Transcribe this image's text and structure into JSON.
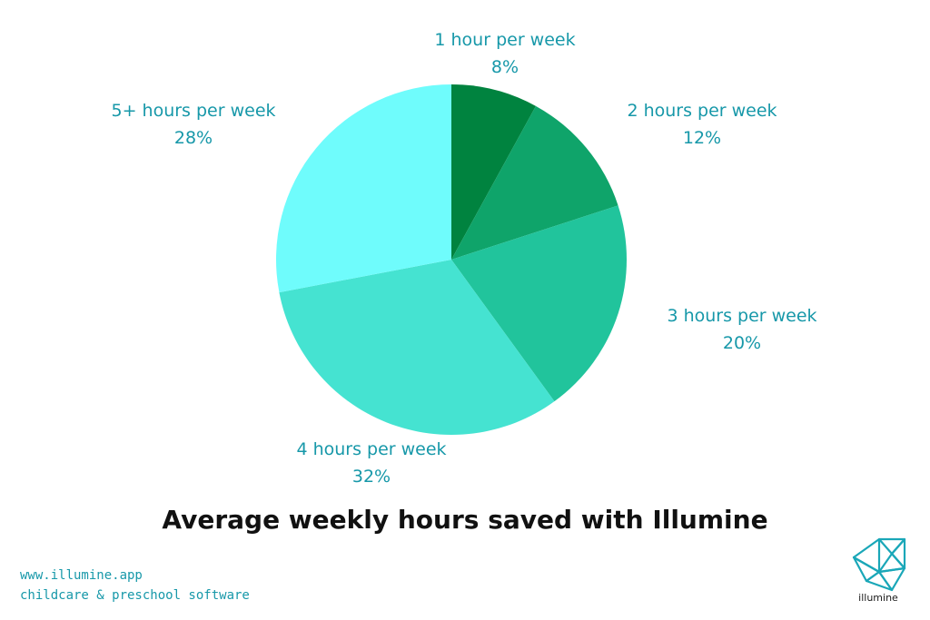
{
  "chart_data": {
    "type": "pie",
    "title": "Average weekly hours saved with Illumine",
    "start_angle_deg": 0,
    "direction": "clockwise",
    "slices": [
      {
        "label": "1 hour per week",
        "value": 8,
        "value_label": "8%",
        "color": "#00833f"
      },
      {
        "label": "2 hours per week",
        "value": 12,
        "value_label": "12%",
        "color": "#0fa46a"
      },
      {
        "label": "3 hours per week",
        "value": 20,
        "value_label": "20%",
        "color": "#21c49c"
      },
      {
        "label": "4 hours per week",
        "value": 32,
        "value_label": "32%",
        "color": "#45e3d1"
      },
      {
        "label": "5+ hours per week",
        "value": 28,
        "value_label": "28%",
        "color": "#6ffcfc"
      }
    ]
  },
  "colors": {
    "label_text": "#1798a9",
    "title_text": "#111111"
  },
  "footer": {
    "url": "www.illumine.app",
    "tagline": "childcare & preschool software"
  },
  "logo": {
    "icon": "triangle-grid-logo-icon",
    "text": "illumine",
    "color": "#1aa7b8"
  }
}
